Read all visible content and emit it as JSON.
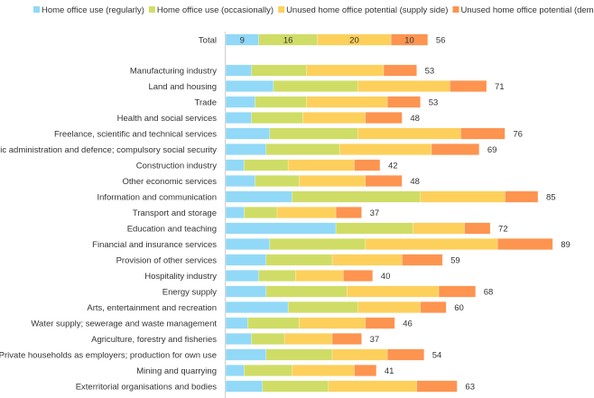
{
  "chart_data": {
    "type": "bar",
    "orientation": "horizontal",
    "stacked": true,
    "legend_position": "top",
    "grid": false,
    "xlim": [
      0,
      90
    ],
    "series": [
      {
        "name": "Home office use (regularly)",
        "color": "#92d9f7"
      },
      {
        "name": "Home office use (occasionally)",
        "color": "#cfdd66"
      },
      {
        "name": "Unused home office potential (supply side)",
        "color": "#fdd05c"
      },
      {
        "name": "Unused home office potential (demand side)",
        "color": "#fd9450"
      }
    ],
    "total_row": {
      "category": "Total",
      "values": [
        9,
        16,
        20,
        10
      ],
      "total": 56,
      "segment_labels_shown": true
    },
    "rows": [
      {
        "category": "Manufacturing industry",
        "values": [
          7,
          15,
          21,
          9
        ],
        "total": 53
      },
      {
        "category": "Land and housing",
        "values": [
          13,
          23,
          25,
          10
        ],
        "total": 71
      },
      {
        "category": "Trade",
        "values": [
          8,
          14,
          22,
          9
        ],
        "total": 53
      },
      {
        "category": "Health and social services",
        "values": [
          7,
          14,
          17,
          10
        ],
        "total": 48
      },
      {
        "category": "Freelance, scientific and technical services",
        "values": [
          12,
          24,
          28,
          12
        ],
        "total": 76
      },
      {
        "category": "Public administration and defence; compulsory social security",
        "values": [
          11,
          20,
          25,
          13
        ],
        "total": 69
      },
      {
        "category": "Construction industry",
        "values": [
          5,
          12,
          18,
          7
        ],
        "total": 42
      },
      {
        "category": "Other economic services",
        "values": [
          8,
          12,
          18,
          10
        ],
        "total": 48
      },
      {
        "category": "Information and communication",
        "values": [
          18,
          35,
          23,
          9
        ],
        "total": 85
      },
      {
        "category": "Transport and storage",
        "values": [
          5,
          9,
          16,
          7
        ],
        "total": 37
      },
      {
        "category": "Education and teaching",
        "values": [
          30,
          21,
          14,
          7
        ],
        "total": 72
      },
      {
        "category": "Financial and insurance services",
        "values": [
          12,
          26,
          36,
          15
        ],
        "total": 89
      },
      {
        "category": "Provision of other services",
        "values": [
          11,
          18,
          19,
          11
        ],
        "total": 59
      },
      {
        "category": "Hospitality industry",
        "values": [
          9,
          10,
          13,
          8
        ],
        "total": 40
      },
      {
        "category": "Energy supply",
        "values": [
          11,
          22,
          25,
          10
        ],
        "total": 68
      },
      {
        "category": "Arts, entertainment and recreation",
        "values": [
          17,
          19,
          17,
          7
        ],
        "total": 60
      },
      {
        "category": "Water supply; sewerage and waste management",
        "values": [
          6,
          14,
          18,
          8
        ],
        "total": 46
      },
      {
        "category": "Agriculture, forestry and fisheries",
        "values": [
          7,
          9,
          13,
          8
        ],
        "total": 37
      },
      {
        "category": "Private households as employers; production for own use",
        "values": [
          11,
          18,
          15,
          10
        ],
        "total": 54
      },
      {
        "category": "Mining and quarrying",
        "values": [
          5,
          13,
          17,
          6
        ],
        "total": 41
      },
      {
        "category": "Exterritorial organisations and bodies",
        "values": [
          10,
          18,
          24,
          11
        ],
        "total": 63
      }
    ]
  }
}
